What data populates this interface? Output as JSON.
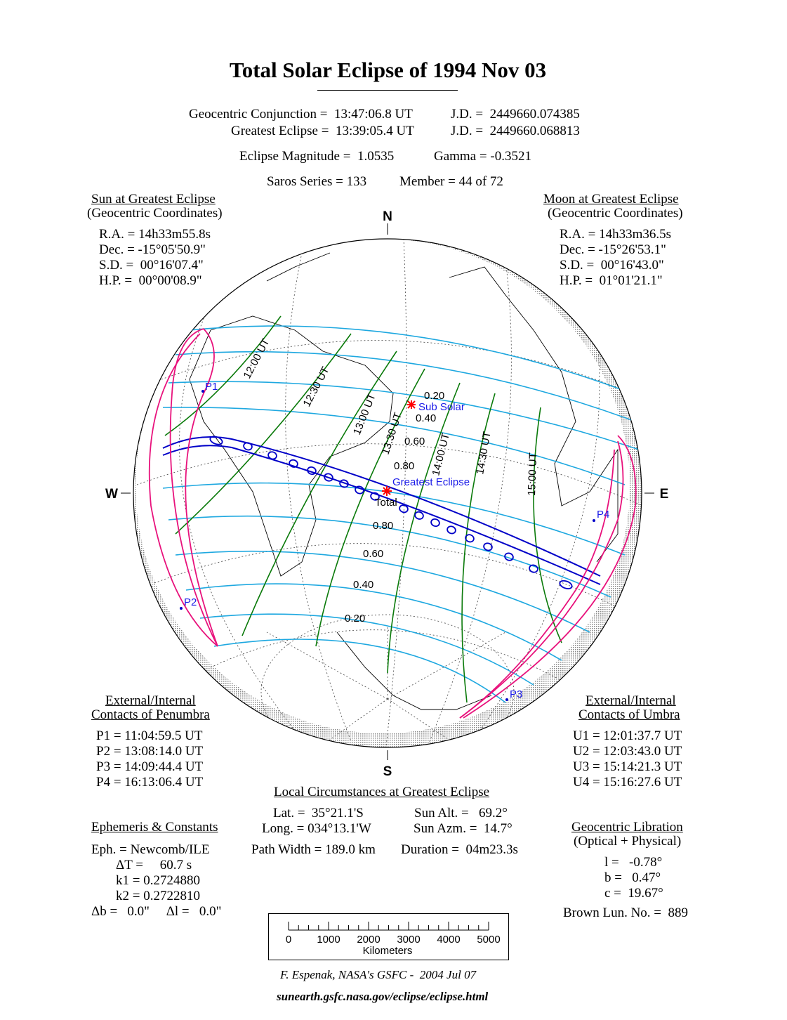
{
  "title": "Total Solar Eclipse of  1994 Nov 03",
  "header": {
    "conjunction": "Geocentric Conjunction =  13:47:06.8 UT",
    "conjunction_jd": "J.D. =  2449660.074385",
    "greatest": "Greatest Eclipse =  13:39:05.4 UT",
    "greatest_jd": "J.D. =  2449660.068813",
    "magnitude": "Eclipse Magnitude =  1.0535",
    "gamma": "Gamma = -0.3521",
    "saros": "Saros Series = 133",
    "member": "Member = 44 of 72"
  },
  "sun": {
    "heading": "Sun at Greatest Eclipse",
    "sub": "(Geocentric Coordinates)",
    "lines": [
      "R.A. = 14h33m55.8s",
      "Dec. = -15°05'50.9\"",
      "S.D. =  00°16'07.4\"",
      "H.P. =  00°00'08.9\""
    ]
  },
  "moon": {
    "heading": "Moon at Greatest Eclipse",
    "sub": "(Geocentric Coordinates)",
    "lines": [
      "R.A. = 14h33m36.5s",
      "Dec. = -15°26'53.1\"",
      "S.D. =  00°16'43.0\"",
      "H.P. =  01°01'21.1\""
    ]
  },
  "penumbra": {
    "heading1": "External/Internal",
    "heading2": "Contacts of Penumbra",
    "lines": [
      "P1 = 11:04:59.5 UT",
      "P2 = 13:08:14.0 UT",
      "P3 = 14:09:44.4 UT",
      "P4 = 16:13:06.4 UT"
    ]
  },
  "umbra": {
    "heading1": "External/Internal",
    "heading2": "Contacts of Umbra",
    "lines": [
      "U1 = 12:01:37.7 UT",
      "U2 = 12:03:43.0 UT",
      "U3 = 15:14:21.3 UT",
      "U4 = 15:16:27.6 UT"
    ]
  },
  "local": {
    "heading": "Local Circumstances at Greatest Eclipse",
    "lat": "Lat. =  35°21.1'S",
    "long": "Long. = 034°13.1'W",
    "sun_alt": "Sun Alt. =   69.2°",
    "sun_azm": "Sun Azm. =  14.7°",
    "path_width": "Path Width = 189.0 km",
    "duration": "Duration =  04m23.3s"
  },
  "ephemeris": {
    "heading": "Ephemeris & Constants",
    "eph": "Eph. = Newcomb/ILE",
    "dt": "ΔT =     60.7 s",
    "k1": "k1 = 0.2724880",
    "k2": "k2 = 0.2722810",
    "db": "Δb =   0.0\"     Δl =   0.0\""
  },
  "libration": {
    "heading": "Geocentric Libration",
    "sub": "(Optical + Physical)",
    "l": "l =   -0.78°",
    "b": "b =   0.47°",
    "c": "c =  19.67°",
    "brown": "Brown Lun. No. =  889"
  },
  "map": {
    "north": "N",
    "south": "S",
    "west": "W",
    "east": "E",
    "time_labels": [
      "12:00 UT",
      "12:30 UT",
      "13:00 UT",
      "13:30 UT",
      "14:00 UT",
      "14:30 UT",
      "15:00 UT"
    ],
    "mag_labels": [
      "0.20",
      "0.40",
      "0.60",
      "0.80",
      "0.80",
      "0.60",
      "0.40",
      "0.20"
    ],
    "contacts": [
      "P1",
      "P2",
      "P3",
      "P4"
    ],
    "sub_solar": "Sub Solar",
    "greatest": "Greatest Eclipse",
    "total": "Total",
    "colors": {
      "magnitude_lines": "#1ea8e0",
      "time_lines": "#0a7a0a",
      "umbral_path": "#0000c8",
      "penumbral_limits": "#e8127c",
      "markers": "#ff0000"
    }
  },
  "scale_bar": {
    "ticks": [
      "0",
      "1000",
      "2000",
      "3000",
      "4000",
      "5000"
    ],
    "unit": "Kilometers"
  },
  "credit": "F. Espenak, NASA's GSFC -  2004 Jul 07",
  "url": "sunearth.gsfc.nasa.gov/eclipse/eclipse.html"
}
